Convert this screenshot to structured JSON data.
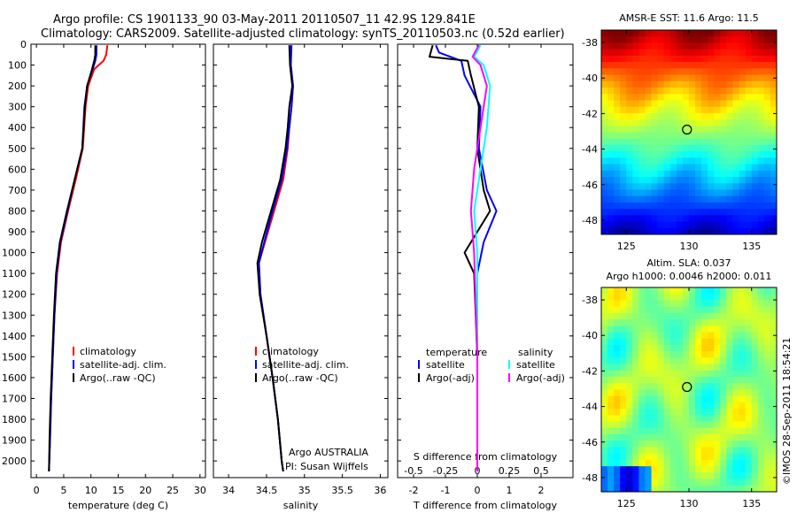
{
  "header": {
    "line1": "Argo profile: CS 1901133_90 03-May-2011 20110507_11 42.9S 129.841E",
    "line2": "Climatology: CARS2009. Satellite-adjusted climatology: synTS_20110503.nc (0.52d earlier)"
  },
  "footer": {
    "credit": "Argo AUSTRALIA",
    "pi": "PI: Susan Wijffels",
    "timestamp": "©IMOS 28-Sep-2011 18:54:21"
  },
  "colors": {
    "climatology": "#ff0000",
    "satellite": "#0000ff",
    "argo": "#000000",
    "argo_salinity": "#ff00ff",
    "satellite_salinity": "#00ffff"
  },
  "chart_data": [
    {
      "id": "temp",
      "type": "line",
      "xlabel": "temperature (deg C)",
      "ylabel": "",
      "xlim": [
        -1,
        31
      ],
      "ylim": [
        2080,
        0
      ],
      "xticks": [
        0,
        5,
        10,
        15,
        20,
        25,
        30
      ],
      "yticks": [
        0,
        100,
        200,
        300,
        400,
        500,
        600,
        700,
        800,
        900,
        1000,
        1100,
        1200,
        1300,
        1400,
        1500,
        1600,
        1700,
        1800,
        1900,
        2000
      ],
      "legend": [
        {
          "label": "climatology",
          "color": "#ff0000"
        },
        {
          "label": "satellite-adj. clim.",
          "color": "#0000ff"
        },
        {
          "label": "Argo(..raw -QC)",
          "color": "#000000"
        }
      ],
      "series": [
        {
          "key": "climatology",
          "color": "#ff0000",
          "points": [
            [
              13,
              5
            ],
            [
              12.8,
              50
            ],
            [
              12.3,
              80
            ],
            [
              10.6,
              120
            ],
            [
              9.5,
              200
            ],
            [
              9.0,
              300
            ],
            [
              8.5,
              500
            ],
            [
              7.2,
              650
            ],
            [
              5.8,
              800
            ],
            [
              4.5,
              950
            ],
            [
              3.8,
              1100
            ],
            [
              3.3,
              1300
            ],
            [
              3.0,
              1500
            ],
            [
              2.7,
              1700
            ],
            [
              2.5,
              1900
            ],
            [
              2.3,
              2050
            ]
          ]
        },
        {
          "key": "satellite",
          "color": "#0000ff",
          "points": [
            [
              11,
              5
            ],
            [
              11,
              50
            ],
            [
              10.8,
              80
            ],
            [
              10.3,
              120
            ],
            [
              9.3,
              200
            ],
            [
              8.8,
              300
            ],
            [
              8.4,
              500
            ],
            [
              7.0,
              650
            ],
            [
              5.7,
              800
            ],
            [
              4.4,
              950
            ],
            [
              3.7,
              1100
            ],
            [
              3.3,
              1300
            ],
            [
              3.0,
              1500
            ],
            [
              2.7,
              1700
            ],
            [
              2.5,
              1900
            ],
            [
              2.3,
              2050
            ]
          ]
        },
        {
          "key": "argo",
          "color": "#000000",
          "points": [
            [
              10.8,
              5
            ],
            [
              10.8,
              50
            ],
            [
              10.6,
              80
            ],
            [
              10.2,
              120
            ],
            [
              9.3,
              200
            ],
            [
              8.9,
              300
            ],
            [
              8.4,
              500
            ],
            [
              7.0,
              650
            ],
            [
              5.6,
              800
            ],
            [
              4.3,
              950
            ],
            [
              3.6,
              1100
            ],
            [
              3.2,
              1300
            ],
            [
              2.9,
              1500
            ],
            [
              2.6,
              1700
            ],
            [
              2.4,
              1900
            ],
            [
              2.3,
              2050
            ]
          ]
        }
      ]
    },
    {
      "id": "sal",
      "type": "line",
      "xlabel": "salinity",
      "ylabel": "",
      "xlim": [
        33.8,
        36.1
      ],
      "ylim": [
        2080,
        0
      ],
      "xticks": [
        34,
        34.5,
        35,
        35.5,
        36
      ],
      "yticks": [
        0,
        100,
        200,
        300,
        400,
        500,
        600,
        700,
        800,
        900,
        1000,
        1100,
        1200,
        1300,
        1400,
        1500,
        1600,
        1700,
        1800,
        1900,
        2000
      ],
      "legend": [
        {
          "label": "climatology",
          "color": "#ff0000"
        },
        {
          "label": "satellite-adj. clim.",
          "color": "#0000ff"
        },
        {
          "label": "Argo(..raw -QC)",
          "color": "#000000"
        }
      ],
      "series": [
        {
          "key": "climatology",
          "color": "#ff0000",
          "points": [
            [
              34.82,
              5
            ],
            [
              34.82,
              100
            ],
            [
              34.85,
              200
            ],
            [
              34.83,
              300
            ],
            [
              34.8,
              400
            ],
            [
              34.78,
              500
            ],
            [
              34.72,
              650
            ],
            [
              34.6,
              800
            ],
            [
              34.48,
              950
            ],
            [
              34.4,
              1050
            ],
            [
              34.42,
              1200
            ],
            [
              34.5,
              1400
            ],
            [
              34.58,
              1600
            ],
            [
              34.65,
              1800
            ],
            [
              34.7,
              2000
            ],
            [
              34.72,
              2050
            ]
          ]
        },
        {
          "key": "satellite",
          "color": "#0000ff",
          "points": [
            [
              34.83,
              5
            ],
            [
              34.82,
              100
            ],
            [
              34.85,
              200
            ],
            [
              34.83,
              300
            ],
            [
              34.8,
              400
            ],
            [
              34.77,
              500
            ],
            [
              34.7,
              650
            ],
            [
              34.58,
              800
            ],
            [
              34.47,
              950
            ],
            [
              34.4,
              1050
            ],
            [
              34.42,
              1200
            ],
            [
              34.5,
              1400
            ],
            [
              34.58,
              1600
            ],
            [
              34.65,
              1800
            ],
            [
              34.7,
              2000
            ],
            [
              34.72,
              2050
            ]
          ]
        },
        {
          "key": "argo",
          "color": "#000000",
          "points": [
            [
              34.8,
              5
            ],
            [
              34.81,
              100
            ],
            [
              34.84,
              200
            ],
            [
              34.8,
              300
            ],
            [
              34.78,
              400
            ],
            [
              34.75,
              500
            ],
            [
              34.68,
              650
            ],
            [
              34.56,
              800
            ],
            [
              34.44,
              950
            ],
            [
              34.38,
              1050
            ],
            [
              34.41,
              1200
            ],
            [
              34.5,
              1400
            ],
            [
              34.58,
              1600
            ],
            [
              34.65,
              1800
            ],
            [
              34.7,
              2000
            ],
            [
              34.72,
              2050
            ]
          ]
        }
      ]
    },
    {
      "id": "diff",
      "type": "line",
      "xlabel": "T difference from climatology",
      "xlabel2": "S difference from climatology",
      "xlim": [
        -2.5,
        3.0
      ],
      "ylim": [
        2080,
        0
      ],
      "xticks": [
        -2,
        -1,
        0,
        1,
        2
      ],
      "xticks2": [
        {
          "v": -0.5,
          "label": "-0.5"
        },
        {
          "v": -0.25,
          "label": "-0.25"
        },
        {
          "v": 0,
          "label": "0"
        },
        {
          "v": 0.25,
          "label": "0.25"
        },
        {
          "v": 0.5,
          "label": "0.5"
        }
      ],
      "yticks": [
        0,
        100,
        200,
        300,
        400,
        500,
        600,
        700,
        800,
        900,
        1000,
        1100,
        1200,
        1300,
        1400,
        1500,
        1600,
        1700,
        1800,
        1900,
        2000
      ],
      "legend_head": {
        "left": "temperature",
        "right": "salinity"
      },
      "legend": [
        {
          "label": "satellite",
          "color": "#0000ff",
          "col": 0
        },
        {
          "label": "Argo(-adj)",
          "color": "#000000",
          "col": 0
        },
        {
          "label": "satellite",
          "color": "#00ffff",
          "col": 1
        },
        {
          "label": "Argo(-adj)",
          "color": "#ff00ff",
          "col": 1
        }
      ],
      "series": [
        {
          "key": "sat_t",
          "color": "#0000ff",
          "points": [
            [
              -1.3,
              5
            ],
            [
              -1.2,
              40
            ],
            [
              -0.5,
              80
            ],
            [
              -0.4,
              150
            ],
            [
              0.1,
              300
            ],
            [
              0.05,
              500
            ],
            [
              0.3,
              700
            ],
            [
              0.6,
              800
            ],
            [
              0.2,
              950
            ],
            [
              0,
              1100
            ],
            [
              0,
              1500
            ],
            [
              0,
              2050
            ]
          ]
        },
        {
          "key": "argo_t",
          "color": "#000000",
          "points": [
            [
              -1.4,
              5
            ],
            [
              -1.5,
              60
            ],
            [
              -0.3,
              80
            ],
            [
              -0.2,
              150
            ],
            [
              0.05,
              300
            ],
            [
              0,
              500
            ],
            [
              0.2,
              700
            ],
            [
              0.4,
              800
            ],
            [
              -0.4,
              1000
            ],
            [
              -0.1,
              1100
            ],
            [
              0,
              1500
            ],
            [
              0,
              2050
            ]
          ]
        },
        {
          "key": "sat_s",
          "color": "#00ffff",
          "points": [
            [
              0.1,
              5
            ],
            [
              -0.1,
              60
            ],
            [
              0.2,
              100
            ],
            [
              0.4,
              200
            ],
            [
              0.3,
              400
            ],
            [
              0.1,
              600
            ],
            [
              -0.1,
              800
            ],
            [
              0,
              1000
            ],
            [
              0,
              1500
            ],
            [
              0,
              2050
            ]
          ]
        },
        {
          "key": "argo_s",
          "color": "#ff00ff",
          "points": [
            [
              0.05,
              5
            ],
            [
              -0.15,
              60
            ],
            [
              0.1,
              100
            ],
            [
              0.3,
              200
            ],
            [
              0.1,
              400
            ],
            [
              -0.1,
              600
            ],
            [
              -0.2,
              800
            ],
            [
              -0.1,
              1000
            ],
            [
              0,
              1500
            ],
            [
              0,
              2050
            ]
          ]
        }
      ]
    },
    {
      "id": "sst_map",
      "type": "heatmap",
      "title": "AMSR-E SST: 11.6 Argo: 11.5",
      "xlim": [
        123,
        137
      ],
      "ylim": [
        -48.8,
        -37.3
      ],
      "xticks": [
        125,
        130,
        135
      ],
      "yticks": [
        -38,
        -40,
        -42,
        -44,
        -46,
        -48
      ],
      "marker": {
        "lon": 129.841,
        "lat": -42.9
      }
    },
    {
      "id": "sla_map",
      "type": "heatmap",
      "title": "Altim. SLA: 0.037",
      "subtitle": "Argo h1000: 0.0046 h2000: 0.011",
      "xlim": [
        123,
        137
      ],
      "ylim": [
        -48.8,
        -37.3
      ],
      "xticks": [
        125,
        130,
        135
      ],
      "yticks": [
        -38,
        -40,
        -42,
        -44,
        -46,
        -48
      ],
      "marker": {
        "lon": 129.841,
        "lat": -42.9
      }
    }
  ]
}
